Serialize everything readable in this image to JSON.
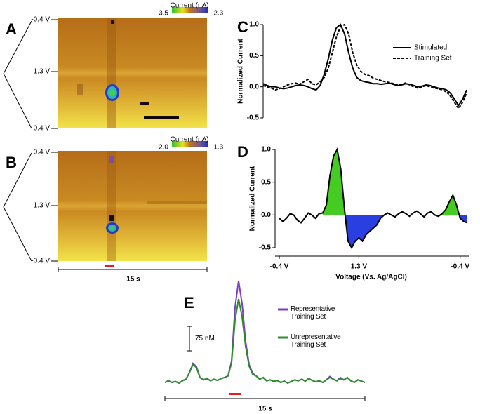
{
  "chart_data": [
    {
      "type": "colorplot",
      "label": "A",
      "y_labels": [
        "-0.4 V",
        "1.3 V",
        "-0.4 V"
      ],
      "colorbar_title": "Current (nA)",
      "colorbar_ticks": [
        3.5,
        -2.3
      ]
    },
    {
      "type": "colorplot",
      "label": "B",
      "y_labels": [
        "-0.4 V",
        "1.3 V",
        "-0.4 V"
      ],
      "colorbar_title": "Current (nA)",
      "colorbar_ticks": [
        {
          "value": 2,
          "label": "2.0"
        },
        -1.3
      ],
      "time_bar": "15 s"
    },
    {
      "type": "line",
      "label": "C",
      "ylabel": "Normalized Current",
      "ylim": [
        -0.5,
        1.0
      ],
      "yticks": [
        -0.5,
        {
          "value": 0,
          "label": "0.0"
        },
        0.5,
        {
          "value": 1,
          "label": "1.0"
        }
      ],
      "legend": "upper right",
      "series": [
        {
          "name": "Stimulated",
          "color": "#000000",
          "line_style": "solid",
          "values": [
            0.05,
            0.02,
            0,
            0,
            -0.02,
            -0.03,
            -0.02,
            0,
            0.02,
            0.03,
            0.02,
            0,
            -0.03,
            -0.05,
            0.02,
            0.2,
            0.45,
            0.75,
            0.95,
            1.0,
            0.85,
            0.55,
            0.3,
            0.15,
            0.1,
            0.08,
            0.07,
            0.05,
            0.05,
            0.04,
            0.05,
            0.06,
            0.04,
            0.02,
            0.03,
            0.05,
            0.04,
            0.02,
            0,
            0.01,
            0.03,
            0.02,
            0,
            -0.02,
            -0.03,
            -0.05,
            -0.1,
            -0.2,
            -0.3,
            -0.2,
            -0.05
          ]
        },
        {
          "name": "Training Set",
          "color": "#000000",
          "line_style": "dashed",
          "values": [
            0.02,
            0,
            -0.02,
            -0.05,
            -0.03,
            0,
            0.03,
            0.05,
            0.06,
            0.04,
            0.08,
            0.12,
            0.05,
            0.03,
            0.08,
            0.15,
            0.3,
            0.55,
            0.8,
            0.97,
            1.0,
            0.85,
            0.55,
            0.35,
            0.25,
            0.2,
            0.18,
            0.14,
            0.12,
            0.1,
            0.08,
            0.07,
            0.05,
            0.03,
            0.04,
            0.06,
            0.03,
            0,
            -0.02,
            0,
            0.02,
            0,
            -0.02,
            -0.03,
            -0.05,
            -0.08,
            -0.15,
            -0.25,
            -0.35,
            -0.25,
            -0.1
          ]
        }
      ]
    },
    {
      "type": "area",
      "label": "D",
      "ylabel": "Normalized Current",
      "xlabel": "Voltage (Vs. Ag/AgCl)",
      "categories": [
        "-0.4 V",
        null,
        null,
        null,
        null,
        null,
        null,
        null,
        null,
        null,
        null,
        null,
        null,
        null,
        null,
        null,
        null,
        null,
        null,
        null,
        null,
        null,
        "1.3 V",
        null,
        null,
        null,
        null,
        null,
        null,
        null,
        null,
        null,
        null,
        null,
        null,
        null,
        null,
        null,
        null,
        null,
        null,
        null,
        null,
        null,
        null,
        null,
        null,
        null,
        null,
        null,
        "-0.4 V",
        null,
        null
      ],
      "ylim": [
        -0.5,
        1.0
      ],
      "yticks": [
        -0.5,
        {
          "value": 0,
          "label": "0.0"
        },
        0.5,
        {
          "value": 1,
          "label": "1.0"
        }
      ],
      "fill_positive": "#44cc22",
      "fill_negative": "#2a3fe0",
      "series": [
        {
          "color": "#000000",
          "values": [
            -0.05,
            -0.1,
            -0.05,
            0.02,
            0,
            -0.08,
            -0.12,
            -0.05,
            0.03,
            0,
            -0.05,
            0.02,
            0.03,
            0.15,
            0.6,
            0.9,
            1.0,
            0.7,
            0.1,
            -0.4,
            -0.5,
            -0.4,
            -0.35,
            -0.4,
            -0.3,
            -0.25,
            -0.2,
            -0.15,
            -0.05,
            0,
            0.03,
            0,
            -0.03,
            0.02,
            0.05,
            0.02,
            -0.02,
            0.03,
            0.06,
            0.02,
            -0.03,
            0.03,
            0.05,
            0,
            -0.02,
            0.02,
            0.08,
            0.2,
            0.3,
            0.15,
            -0.05,
            -0.1,
            -0.12
          ]
        }
      ]
    },
    {
      "type": "line",
      "label": "E",
      "scale_bar": {
        "value": 75,
        "label": "75 nM"
      },
      "time_bar": "15 s",
      "series": [
        {
          "name": "Representative Training Set",
          "color": "#7b3fc0",
          "values": [
            0,
            5,
            0,
            3,
            -2,
            5,
            10,
            30,
            58,
            48,
            15,
            8,
            12,
            5,
            10,
            6,
            12,
            15,
            20,
            65,
            230,
            310,
            240,
            125,
            55,
            28,
            20,
            10,
            15,
            5,
            8,
            3,
            6,
            0,
            4,
            -2,
            3,
            8,
            5,
            10,
            4,
            12,
            6,
            2,
            5,
            0,
            8,
            18,
            10,
            5,
            15,
            8,
            15,
            5,
            0,
            8,
            4,
            0
          ]
        },
        {
          "name": "Unrepresentative Training Set",
          "color": "#2e8b2e",
          "values": [
            0,
            5,
            0,
            3,
            -2,
            5,
            10,
            30,
            55,
            45,
            15,
            8,
            12,
            5,
            10,
            6,
            12,
            15,
            20,
            60,
            190,
            255,
            200,
            110,
            50,
            25,
            20,
            10,
            15,
            5,
            8,
            3,
            6,
            0,
            4,
            -2,
            3,
            8,
            5,
            10,
            4,
            12,
            6,
            2,
            5,
            0,
            8,
            15,
            10,
            5,
            12,
            8,
            15,
            5,
            0,
            8,
            4,
            0
          ]
        }
      ]
    }
  ]
}
